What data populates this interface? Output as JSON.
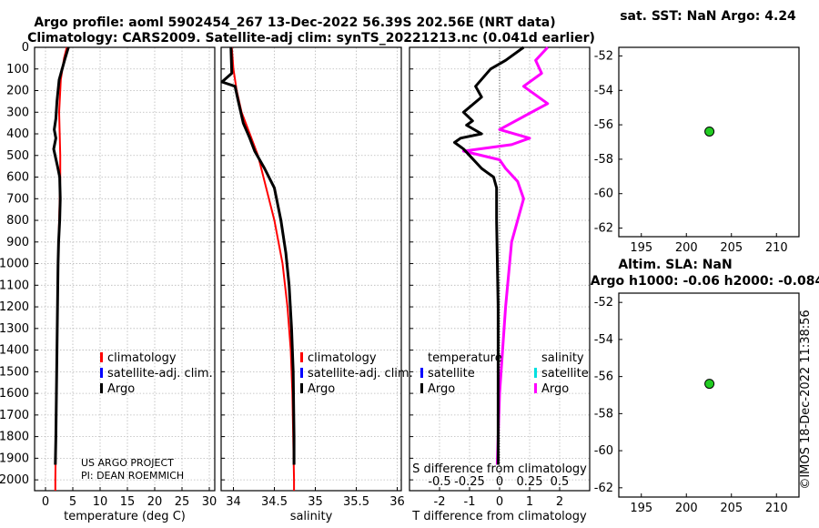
{
  "title_line1": "Argo profile: aoml 5902454_267 13-Dec-2022 56.39S 202.56E (NRT data)",
  "title_line2": "Climatology: CARS2009. Satellite-adj clim: synTS_20221213.nc (0.041d earlier)",
  "map_top_title": "sat. SST: NaN Argo: 4.24",
  "map_bottom_title1": "Altim. SLA: NaN",
  "map_bottom_title2": "Argo h1000: -0.06 h2000: -0.084",
  "credit": "©IMOS 18-Dec-2022 11:38:56",
  "colors": {
    "climatology": "#ff0000",
    "satellite_clim": "#0000ff",
    "argo": "#000000",
    "salinity_argo": "#ff00ff",
    "salinity_satellite": "#00e0e0",
    "marker_fill": "#22cc22"
  },
  "panel_temp": {
    "xlabel": "temperature (deg C)",
    "legend": [
      "climatology",
      "satellite-adj. clim.",
      "Argo"
    ],
    "note_line1": "US ARGO PROJECT",
    "note_line2": "PI: DEAN ROEMMICH"
  },
  "panel_sal": {
    "xlabel": "salinity",
    "legend": [
      "climatology",
      "satellite-adj. clim.",
      "Argo"
    ]
  },
  "panel_diff": {
    "xlabel": "T difference from climatology",
    "xlabel_top": "S difference from climatology",
    "legend_temp_header": "temperature",
    "legend_sal_header": "salinity",
    "legend_temp": [
      "satellite",
      "Argo"
    ],
    "legend_sal": [
      "satellite",
      "Argo"
    ]
  },
  "chart_data": [
    {
      "type": "line",
      "panel": "temperature",
      "xlabel": "temperature (deg C)",
      "ylabel": "",
      "xlim": [
        -2,
        31
      ],
      "ylim": [
        2050,
        0
      ],
      "xticks": [
        0,
        5,
        10,
        15,
        20,
        25,
        30
      ],
      "yticks": [
        0,
        100,
        200,
        300,
        400,
        500,
        600,
        700,
        800,
        900,
        1000,
        1100,
        1200,
        1300,
        1400,
        1500,
        1600,
        1700,
        1800,
        1900,
        2000
      ],
      "grid": true,
      "legend_position": "lower-right",
      "series": [
        {
          "name": "climatology",
          "x": [
            3.9,
            3.4,
            2.8,
            2.5,
            2.6,
            2.7,
            2.7,
            2.6,
            2.5,
            2.4,
            2.3,
            2.2,
            2.1,
            2.0,
            1.9,
            1.8,
            1.8
          ],
          "y": [
            0,
            50,
            150,
            300,
            400,
            500,
            600,
            700,
            800,
            900,
            1000,
            1200,
            1400,
            1600,
            1800,
            2000,
            2050
          ]
        },
        {
          "name": "Argo",
          "x": [
            4.2,
            3.6,
            2.5,
            2.1,
            1.9,
            1.6,
            1.9,
            1.5,
            2.2,
            2.6,
            2.7,
            2.6,
            2.4,
            2.3,
            2.2,
            2.1,
            2.0,
            1.9,
            1.8
          ],
          "y": [
            0,
            50,
            150,
            250,
            330,
            380,
            420,
            470,
            550,
            600,
            700,
            800,
            900,
            1000,
            1200,
            1400,
            1600,
            1800,
            1930
          ]
        }
      ]
    },
    {
      "type": "line",
      "panel": "salinity",
      "xlabel": "salinity",
      "ylabel": "",
      "xlim": [
        33.85,
        36.05
      ],
      "ylim": [
        2050,
        0
      ],
      "xticks": [
        34,
        34.5,
        35,
        35.5,
        36
      ],
      "grid": true,
      "legend_position": "lower-right",
      "series": [
        {
          "name": "climatology",
          "x": [
            33.98,
            34.0,
            34.04,
            34.1,
            34.2,
            34.3,
            34.4,
            34.5,
            34.6,
            34.66,
            34.7,
            34.72,
            34.73,
            34.74,
            34.74
          ],
          "y": [
            0,
            100,
            200,
            300,
            400,
            500,
            650,
            800,
            1000,
            1200,
            1400,
            1600,
            1800,
            2000,
            2050
          ]
        },
        {
          "name": "Argo",
          "x": [
            33.97,
            33.98,
            33.86,
            34.02,
            34.06,
            34.12,
            34.2,
            34.26,
            34.38,
            34.5,
            34.58,
            34.64,
            34.68,
            34.71,
            34.73,
            34.74,
            34.74
          ],
          "y": [
            0,
            120,
            160,
            180,
            250,
            350,
            420,
            480,
            560,
            650,
            800,
            950,
            1100,
            1300,
            1500,
            1800,
            1930
          ]
        }
      ]
    },
    {
      "type": "line",
      "panel": "difference",
      "xlabel": "T difference from climatology",
      "xlabel_top": "S difference from climatology",
      "xlim": [
        -3,
        3
      ],
      "ylim": [
        2050,
        0
      ],
      "xticks": [
        -2,
        -1,
        0,
        1,
        2
      ],
      "xticks_top": [
        "-0.5",
        "-0.25",
        "0",
        "0.25",
        "0.5"
      ],
      "grid": true,
      "legend_position": "lower",
      "series": [
        {
          "name": "temperature Argo",
          "x": [
            0.8,
            0.2,
            -0.3,
            -0.8,
            -0.6,
            -1.2,
            -0.9,
            -1.1,
            -0.6,
            -1.3,
            -1.5,
            -1.2,
            -1.0,
            -0.8,
            -0.6,
            -0.4,
            -0.2,
            -0.1,
            -0.1,
            -0.05,
            -0.05,
            -0.05
          ],
          "y": [
            0,
            60,
            100,
            180,
            230,
            300,
            340,
            360,
            400,
            420,
            440,
            470,
            500,
            530,
            560,
            580,
            600,
            650,
            800,
            1200,
            1600,
            1930
          ]
        },
        {
          "name": "salinity Argo",
          "x": [
            0.4,
            0.3,
            0.35,
            0.2,
            0.4,
            0.2,
            0.0,
            0.25,
            0.1,
            -0.3,
            0.0,
            0.05,
            0.15,
            0.2,
            0.1,
            0.05,
            0.0,
            -0.02
          ],
          "y": [
            0,
            60,
            120,
            180,
            260,
            320,
            380,
            420,
            450,
            480,
            520,
            560,
            620,
            700,
            900,
            1200,
            1600,
            1930
          ]
        }
      ]
    },
    {
      "type": "scatter",
      "panel": "map_top",
      "title": "sat. SST: NaN Argo: 4.24",
      "xlim": [
        192.5,
        212.5
      ],
      "ylim": [
        -62.5,
        -51.5
      ],
      "xticks": [
        195,
        200,
        205,
        210
      ],
      "yticks": [
        -52,
        -54,
        -56,
        -58,
        -60,
        -62
      ],
      "points": [
        {
          "x": 202.56,
          "y": -56.39
        }
      ]
    },
    {
      "type": "scatter",
      "panel": "map_bottom",
      "title": "Altim. SLA: NaN",
      "subtitle": "Argo h1000: -0.06 h2000: -0.084",
      "xlim": [
        192.5,
        212.5
      ],
      "ylim": [
        -62.5,
        -51.5
      ],
      "xticks": [
        195,
        200,
        205,
        210
      ],
      "yticks": [
        -52,
        -54,
        -56,
        -58,
        -60,
        -62
      ],
      "points": [
        {
          "x": 202.56,
          "y": -56.39
        }
      ]
    }
  ]
}
